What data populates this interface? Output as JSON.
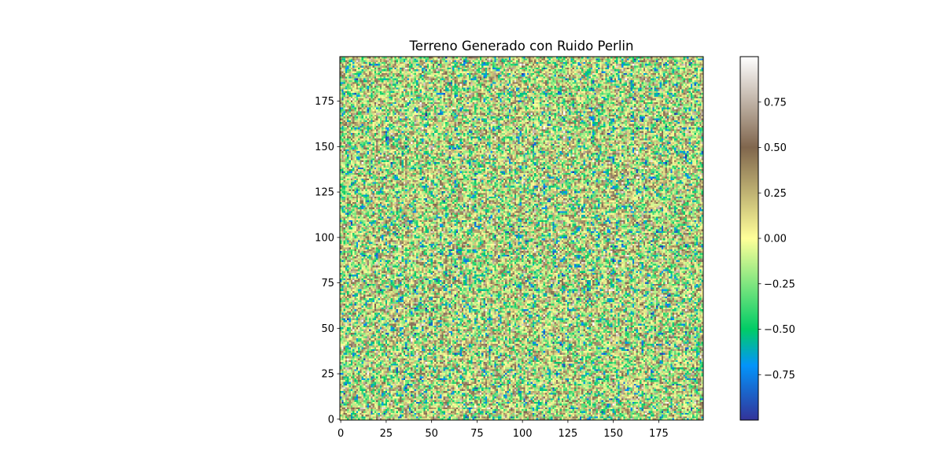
{
  "chart_data": {
    "type": "heatmap",
    "title": "Terreno Generado con Ruido Perlin",
    "xlabel": "",
    "ylabel": "",
    "grid_size": [
      200,
      200
    ],
    "xlim": [
      0,
      199
    ],
    "ylim": [
      0,
      199
    ],
    "x_ticks": [
      0,
      25,
      50,
      75,
      100,
      125,
      150,
      175
    ],
    "y_ticks": [
      0,
      25,
      50,
      75,
      100,
      125,
      150,
      175
    ],
    "x_tick_labels": [
      "0",
      "25",
      "50",
      "75",
      "100",
      "125",
      "150",
      "175"
    ],
    "y_tick_labels": [
      "0",
      "25",
      "50",
      "75",
      "100",
      "125",
      "150",
      "175"
    ],
    "value_range": [
      -1,
      1
    ],
    "colormap": "terrain",
    "grid": false,
    "colorbar": {
      "location": "right",
      "ticks": [
        0.75,
        0.5,
        0.25,
        0.0,
        -0.25,
        -0.5,
        -0.75
      ],
      "tick_labels": [
        "0.75",
        "0.50",
        "0.25",
        "0.00",
        "−0.25",
        "−0.50",
        "−0.75"
      ],
      "colors": [
        "#333399",
        "#0394fa",
        "#01cc66",
        "#ffff99",
        "#80664d",
        "#ffffff"
      ],
      "color_stops": [
        0.0,
        0.15,
        0.25,
        0.5,
        0.75,
        1.0
      ]
    }
  }
}
